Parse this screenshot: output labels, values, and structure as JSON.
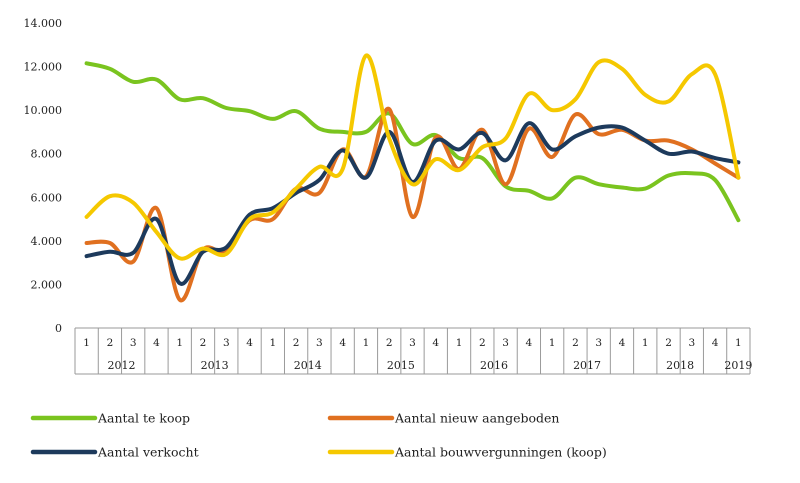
{
  "chart_data": {
    "type": "line",
    "title": "",
    "xlabel": "",
    "ylabel": "",
    "ylim": [
      0,
      14000
    ],
    "y_ticks": [
      0,
      2000,
      4000,
      6000,
      8000,
      10000,
      12000,
      14000
    ],
    "y_tick_labels": [
      "0",
      "2.000",
      "4.000",
      "6.000",
      "8.000",
      "10.000",
      "12.000",
      "14.000"
    ],
    "categories": [
      "1",
      "2",
      "3",
      "4",
      "1",
      "2",
      "3",
      "4",
      "1",
      "2",
      "3",
      "4",
      "1",
      "2",
      "3",
      "4",
      "1",
      "2",
      "3",
      "4",
      "1",
      "2",
      "3",
      "4",
      "1",
      "2",
      "3",
      "4",
      "1"
    ],
    "years": [
      {
        "label": "2012",
        "quarters": 4
      },
      {
        "label": "2013",
        "quarters": 4
      },
      {
        "label": "2014",
        "quarters": 4
      },
      {
        "label": "2015",
        "quarters": 4
      },
      {
        "label": "2016",
        "quarters": 4
      },
      {
        "label": "2017",
        "quarters": 4
      },
      {
        "label": "2018",
        "quarters": 4
      },
      {
        "label": "2019",
        "quarters": 1
      }
    ],
    "grid": false,
    "legend_position": "bottom",
    "series": [
      {
        "name": "Aantal te koop",
        "color": "#7ac41f",
        "values": [
          12150,
          11900,
          11300,
          11400,
          10500,
          10550,
          10100,
          9950,
          9600,
          9950,
          9150,
          9000,
          9000,
          9850,
          8450,
          8850,
          7800,
          7800,
          6500,
          6300,
          5950,
          6900,
          6600,
          6450,
          6400,
          7000,
          7100,
          6800,
          4950
        ]
      },
      {
        "name": "Aantal nieuw aangeboden",
        "color": "#e07020",
        "values": [
          3900,
          3900,
          3050,
          5500,
          1300,
          3600,
          3500,
          4950,
          5000,
          6400,
          6200,
          8200,
          6950,
          10050,
          5100,
          8750,
          7300,
          9100,
          6600,
          9150,
          7850,
          9800,
          8900,
          9100,
          8600,
          8600,
          8200,
          7550,
          6900
        ]
      },
      {
        "name": "Aantal verkocht",
        "color": "#1d3a5c",
        "values": [
          3300,
          3500,
          3450,
          5000,
          2050,
          3500,
          3700,
          5200,
          5500,
          6200,
          6800,
          8150,
          6900,
          9000,
          6700,
          8600,
          8200,
          8950,
          7700,
          9400,
          8200,
          8800,
          9200,
          9200,
          8600,
          8000,
          8100,
          7800,
          7600
        ]
      },
      {
        "name": "Aantal bouwvergunningen (koop)",
        "color": "#f5c800",
        "values": [
          5100,
          6050,
          5750,
          4400,
          3200,
          3650,
          3400,
          5000,
          5300,
          6400,
          7400,
          7300,
          12500,
          8700,
          6600,
          7750,
          7250,
          8300,
          8700,
          10750,
          10000,
          10500,
          12200,
          11900,
          10700,
          10400,
          11650,
          11650,
          6900
        ]
      }
    ]
  }
}
